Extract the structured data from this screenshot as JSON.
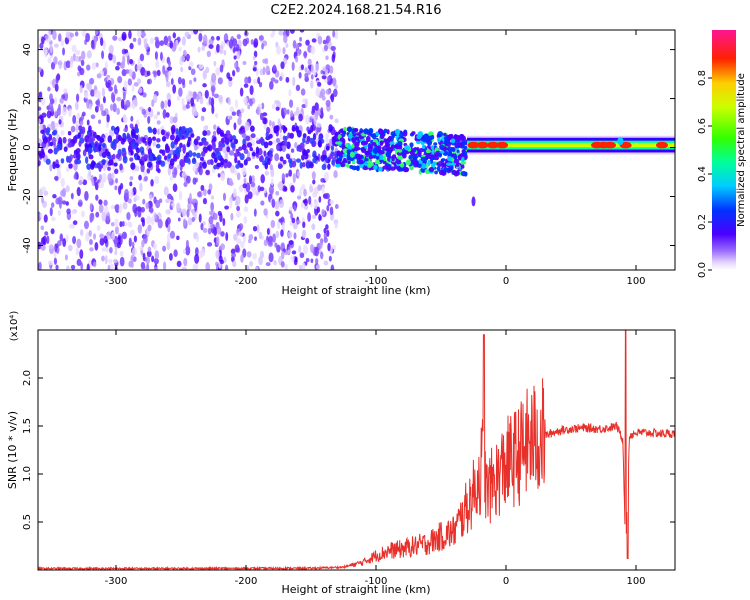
{
  "title": "C2E2.2024.168.21.54.R16",
  "chart_data": [
    {
      "type": "heatmap",
      "xlabel": "Height of straight line (km)",
      "ylabel": "Frequency (Hz)",
      "xlim": [
        -360,
        130
      ],
      "ylim": [
        -50,
        48
      ],
      "xticks": [
        -300,
        -200,
        -100,
        0,
        100
      ],
      "yticks": [
        -40,
        -20,
        0,
        20,
        40
      ],
      "colorbar": {
        "label": "Normalized spectral amplitude",
        "range": [
          0.0,
          1.0
        ],
        "ticks": [
          0.0,
          0.2,
          0.4,
          0.6,
          0.8
        ],
        "colormap": "rainbow (purple-white at 0 → blue → cyan → green → yellow → red → magenta at 1)"
      },
      "regions": [
        {
          "x_range": [
            -360,
            -130
          ],
          "freq_range": [
            -50,
            48
          ],
          "amplitude": 0.05
        },
        {
          "x_range": [
            -130,
            -30
          ],
          "freq_center": 0,
          "freq_halfwidth": 8,
          "amplitude": 0.3
        },
        {
          "x_range": [
            -30,
            130
          ],
          "freq_center": 1,
          "freq_halfwidth": 3,
          "amplitude": 0.6
        }
      ]
    },
    {
      "type": "line",
      "xlabel": "Height of straight line (km)",
      "ylabel": "SNR (10 * v/v)",
      "y_multiplier": "(x10⁴)",
      "xlim": [
        -360,
        130
      ],
      "ylim": [
        0,
        25000
      ],
      "xticks": [
        -300,
        -200,
        -100,
        0,
        100
      ],
      "yticks": [
        0.5,
        1.0,
        1.5,
        2.0
      ],
      "ytick_labels": [
        "0.5",
        "1.0",
        "1.5",
        "2.0"
      ],
      "grid": false,
      "series": [
        {
          "color": "#e8302a",
          "x": [
            -360,
            -300,
            -250,
            -200,
            -150,
            -125,
            -110,
            -100,
            -90,
            -80,
            -70,
            -60,
            -50,
            -40,
            -32,
            -25,
            -20,
            -17,
            -15,
            -10,
            -5,
            0,
            5,
            10,
            15,
            20,
            30,
            40,
            50,
            60,
            70,
            80,
            85,
            90,
            92,
            95,
            100,
            110,
            120,
            130
          ],
          "y": [
            150,
            150,
            160,
            170,
            180,
            300,
            800,
            1500,
            2000,
            2200,
            2500,
            2800,
            3500,
            4000,
            6000,
            8000,
            10000,
            12000,
            8000,
            9000,
            10000,
            11000,
            11500,
            12000,
            13000,
            13500,
            14000,
            14500,
            14700,
            14800,
            14700,
            14800,
            15000,
            13500,
            2000,
            14000,
            14300,
            14300,
            14200,
            14200
          ]
        }
      ]
    }
  ]
}
